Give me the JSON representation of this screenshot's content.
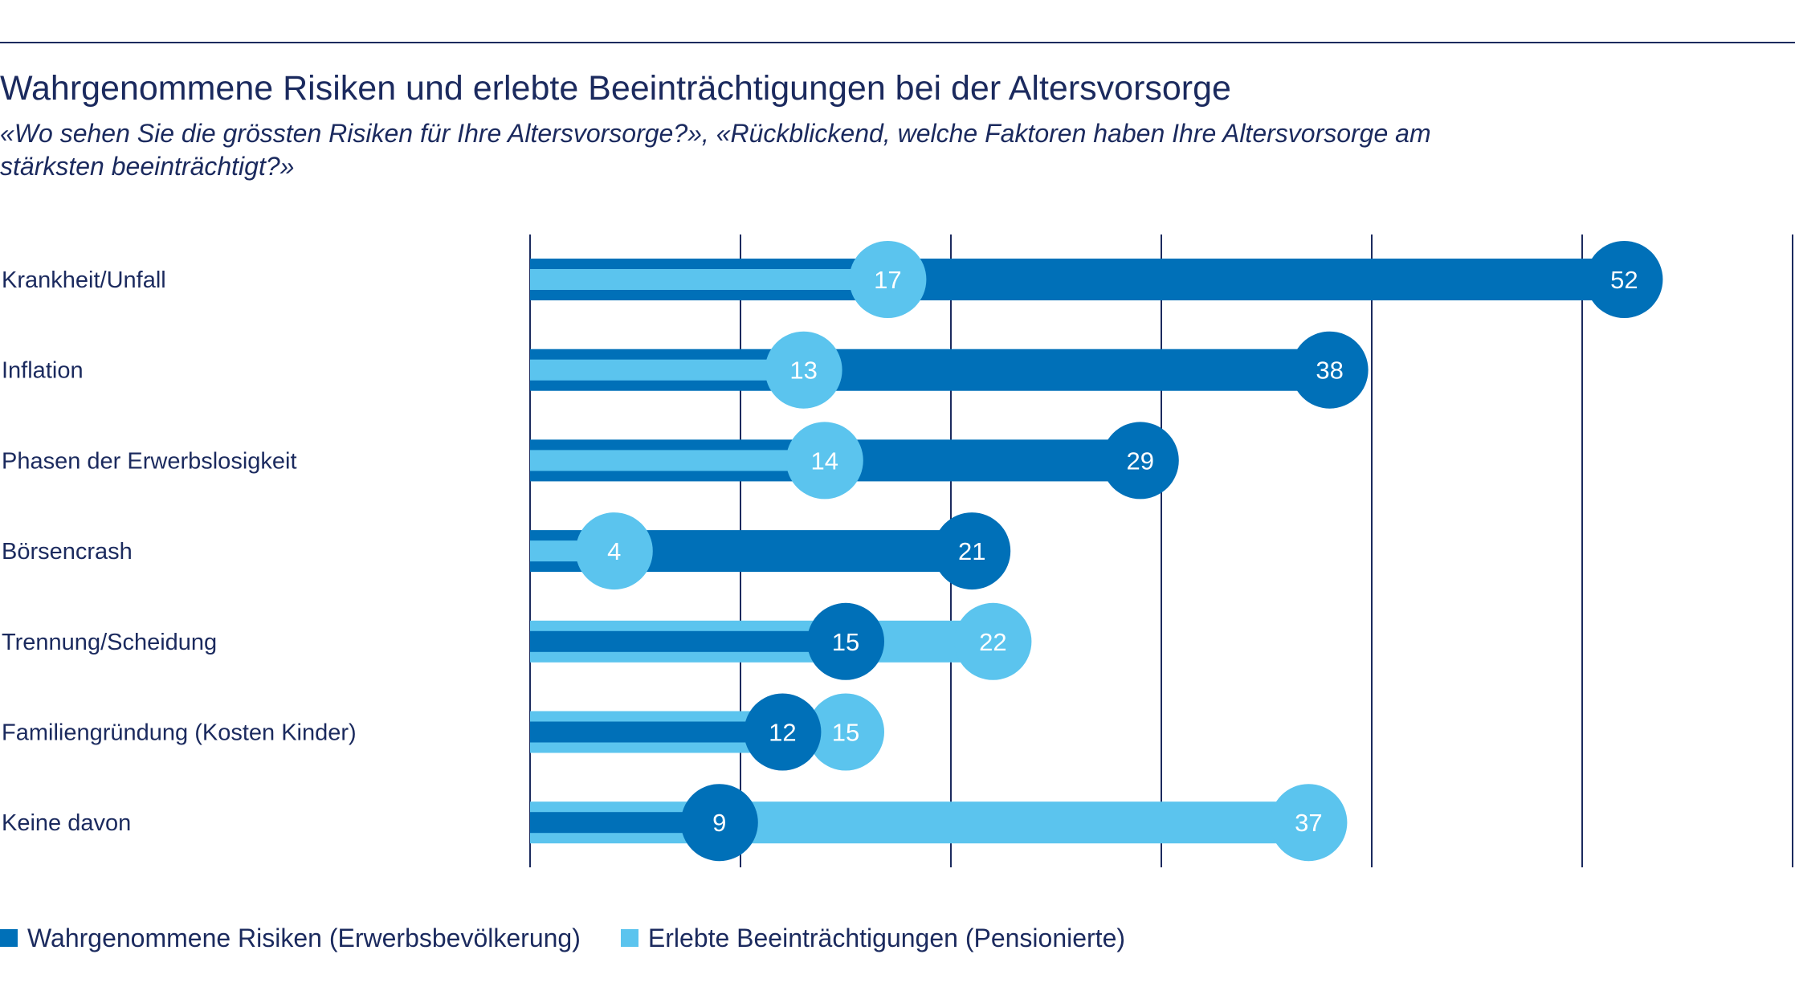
{
  "title": "Wahrgenommene Risiken und erlebte Beeinträchtigungen bei der Altersvorsorge",
  "subtitle": "«Wo sehen Sie die grössten Risiken für Ihre Altersvorsorge?», «Rückblickend, welche Faktoren haben Ihre Altersvorsorge am stärksten beeinträchtigt?»",
  "colors": {
    "risiken": "#0070b8",
    "beeintraechtigungen": "#5bc4ee",
    "grid": "#1b2a5e",
    "text": "#1b2a5e"
  },
  "legend": {
    "risiken": "Wahrgenommene Risiken (Erwerbsbevölkerung)",
    "beeintraechtigungen": "Erlebte Beeinträchtigungen (Pensionierte)"
  },
  "chart_data": {
    "type": "bar",
    "orientation": "horizontal",
    "categories": [
      "Krankheit/Unfall",
      "Inflation",
      "Phasen der Erwerbslosigkeit",
      "Börsencrash",
      "Trennung/Scheidung",
      "Familiengründung (Kosten Kinder)",
      "Keine davon"
    ],
    "series": [
      {
        "name": "Wahrgenommene Risiken (Erwerbsbevölkerung)",
        "values": [
          52,
          38,
          29,
          21,
          15,
          12,
          9
        ]
      },
      {
        "name": "Erlebte Beeinträchtigungen (Pensionierte)",
        "values": [
          17,
          13,
          14,
          4,
          22,
          15,
          37
        ]
      }
    ],
    "xlim": [
      0,
      60
    ],
    "grid_step": 10,
    "grid": true,
    "legend_position": "bottom-left"
  }
}
